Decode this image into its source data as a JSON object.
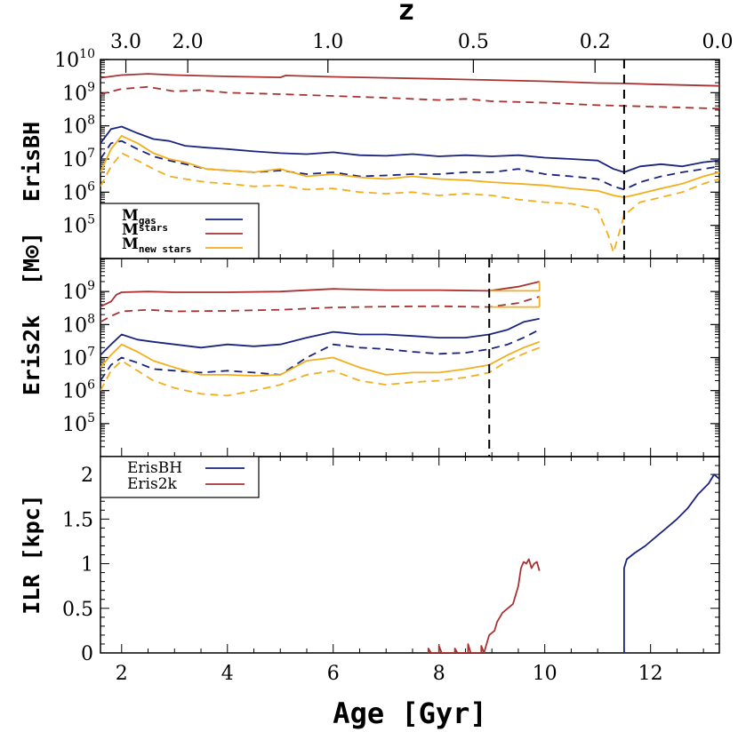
{
  "colors": {
    "gas": "#1a237e",
    "stars": "#a83232",
    "new_stars": "#f2ae1c",
    "axis": "#000000"
  },
  "chart_data": [
    {
      "type": "line",
      "panel": "top",
      "ylabel": "ErisBH",
      "yscale": "log",
      "ylim": [
        10000,
        10000000000
      ],
      "xlim": [
        1.6,
        13.3
      ],
      "top_axis_label": "z",
      "top_ticks": [
        {
          "label": "3.0",
          "age": 2.08
        },
        {
          "label": "2.0",
          "age": 3.25
        },
        {
          "label": "1.0",
          "age": 5.9
        },
        {
          "label": "0.5",
          "age": 8.65
        },
        {
          "label": "0.2",
          "age": 10.95
        },
        {
          "label": "0.0",
          "age": 13.3
        }
      ],
      "y_ticks": [
        "10^5",
        "10^6",
        "10^7",
        "10^8",
        "10^9",
        "10^10"
      ],
      "vline": 11.5,
      "legend": {
        "position": "lower-left",
        "entries": [
          {
            "base": "M",
            "sub": "gas",
            "sup": "",
            "series": "gas"
          },
          {
            "base": "M",
            "sub": "",
            "sup": "stars",
            "series": "stars"
          },
          {
            "base": "M",
            "sub": "new stars",
            "sup": "",
            "series": "new_stars"
          }
        ]
      },
      "series": [
        {
          "key": "stars",
          "style": "solid",
          "x": [
            1.6,
            2.0,
            2.5,
            3.0,
            4.0,
            5.0,
            5.1,
            6.0,
            7.0,
            8.0,
            9.0,
            10.0,
            11.0,
            11.5,
            12.0,
            13.3
          ],
          "y": [
            2800000000.0,
            3400000000.0,
            3700000000.0,
            3400000000.0,
            3100000000.0,
            2900000000.0,
            3300000000.0,
            3000000000.0,
            2800000000.0,
            2600000000.0,
            2400000000.0,
            2200000000.0,
            1950000000.0,
            1900000000.0,
            1800000000.0,
            1600000000.0
          ]
        },
        {
          "key": "stars",
          "style": "dashed",
          "x": [
            1.6,
            2.0,
            2.5,
            3.0,
            3.5,
            4.0,
            5.0,
            6.0,
            7.0,
            8.0,
            8.5,
            9.0,
            10.0,
            11.0,
            11.5,
            12.0,
            13.3
          ],
          "y": [
            900000000.0,
            1300000000.0,
            1500000000.0,
            1100000000.0,
            1200000000.0,
            1000000000.0,
            900000000.0,
            800000000.0,
            700000000.0,
            600000000.0,
            650000000.0,
            550000000.0,
            500000000.0,
            420000000.0,
            400000000.0,
            380000000.0,
            330000000.0
          ]
        },
        {
          "key": "gas",
          "style": "solid",
          "x": [
            1.6,
            1.8,
            2.0,
            2.3,
            2.6,
            2.9,
            3.2,
            3.6,
            4.0,
            4.5,
            5.0,
            5.5,
            6.0,
            6.5,
            7.0,
            7.5,
            8.0,
            8.5,
            9.0,
            9.5,
            10.0,
            10.5,
            11.0,
            11.3,
            11.5,
            11.8,
            12.2,
            12.6,
            13.0,
            13.3
          ],
          "y": [
            30000000.0,
            80000000.0,
            95000000.0,
            60000000.0,
            40000000.0,
            35000000.0,
            25000000.0,
            22000000.0,
            20000000.0,
            17000000.0,
            15000000.0,
            14000000.0,
            16000000.0,
            13000000.0,
            12500000.0,
            14000000.0,
            12000000.0,
            13000000.0,
            12000000.0,
            13000000.0,
            11000000.0,
            10000000.0,
            9000000.0,
            5000000.0,
            4000000.0,
            6000000.0,
            7000000.0,
            6000000.0,
            8000000.0,
            9000000.0
          ]
        },
        {
          "key": "gas",
          "style": "dashed",
          "x": [
            1.6,
            1.8,
            2.0,
            2.3,
            2.6,
            2.9,
            3.2,
            3.6,
            4.0,
            4.5,
            5.0,
            5.5,
            6.0,
            6.5,
            7.0,
            7.5,
            8.0,
            8.5,
            9.0,
            9.5,
            10.0,
            10.5,
            11.0,
            11.3,
            11.5,
            11.8,
            12.2,
            12.6,
            13.0,
            13.3
          ],
          "y": [
            10000000.0,
            30000000.0,
            35000000.0,
            20000000.0,
            12000000.0,
            9000000.0,
            7000000.0,
            5000000.0,
            4500000.0,
            4000000.0,
            4500000.0,
            3500000.0,
            4000000.0,
            3000000.0,
            3200000.0,
            3500000.0,
            3500000.0,
            4000000.0,
            4000000.0,
            5000000.0,
            3500000.0,
            3000000.0,
            2500000.0,
            1500000.0,
            1200000.0,
            2000000.0,
            3000000.0,
            4000000.0,
            5000000.0,
            6000000.0
          ]
        },
        {
          "key": "new_stars",
          "style": "solid",
          "x": [
            1.6,
            1.8,
            2.0,
            2.3,
            2.6,
            2.9,
            3.2,
            3.6,
            4.0,
            4.5,
            5.0,
            5.5,
            6.0,
            6.5,
            7.0,
            7.5,
            8.0,
            8.5,
            9.0,
            9.5,
            10.0,
            10.5,
            11.0,
            11.3,
            11.5,
            11.8,
            12.2,
            12.6,
            13.0,
            13.3
          ],
          "y": [
            4000000.0,
            20000000.0,
            50000000.0,
            30000000.0,
            15000000.0,
            10000000.0,
            8000000.0,
            5000000.0,
            4500000.0,
            4000000.0,
            5000000.0,
            3000000.0,
            3500000.0,
            2800000.0,
            2500000.0,
            3000000.0,
            2500000.0,
            2300000.0,
            2000000.0,
            1800000.0,
            1600000.0,
            1300000.0,
            1100000.0,
            800000.0,
            700000.0,
            900000.0,
            1300000.0,
            1800000.0,
            3000000.0,
            4000000.0
          ]
        },
        {
          "key": "new_stars",
          "style": "dashed",
          "x": [
            1.6,
            1.8,
            2.0,
            2.3,
            2.6,
            2.9,
            3.2,
            3.6,
            4.0,
            4.5,
            5.0,
            5.5,
            6.0,
            6.5,
            7.0,
            7.5,
            8.0,
            8.5,
            9.0,
            9.5,
            10.0,
            10.5,
            11.0,
            11.2,
            11.3,
            11.5,
            11.8,
            12.2,
            12.6,
            13.0,
            13.3
          ],
          "y": [
            1500000.0,
            6000000.0,
            15000000.0,
            9000000.0,
            5000000.0,
            3000000.0,
            2500000.0,
            2000000.0,
            1800000.0,
            1500000.0,
            1600000.0,
            1200000.0,
            1300000.0,
            1000000.0,
            900000.0,
            1000000.0,
            800000.0,
            900000.0,
            800000.0,
            600000.0,
            500000.0,
            450000.0,
            300000.0,
            50000.0,
            15000.0,
            200000.0,
            500000.0,
            700000.0,
            1000000.0,
            1800000.0,
            2500000.0
          ]
        }
      ]
    },
    {
      "type": "line",
      "panel": "middle",
      "ylabel": "Eris2k",
      "yscale": "log",
      "ylim": [
        10000,
        10000000000
      ],
      "xlim": [
        1.6,
        13.3
      ],
      "y_ticks": [
        "10^5",
        "10^6",
        "10^7",
        "10^8",
        "10^9"
      ],
      "vline": 8.95,
      "series": [
        {
          "key": "stars",
          "style": "solid",
          "x": [
            1.6,
            1.8,
            1.9,
            2.0,
            2.5,
            3.0,
            4.0,
            5.0,
            6.0,
            7.0,
            8.0,
            8.95,
            9.5,
            9.9
          ],
          "y": [
            350000000.0,
            500000000.0,
            800000000.0,
            950000000.0,
            1000000000.0,
            950000000.0,
            950000000.0,
            1000000000.0,
            1200000000.0,
            1100000000.0,
            1100000000.0,
            1050000000.0,
            1400000000.0,
            2000000000.0
          ]
        },
        {
          "key": "stars",
          "style": "dashed",
          "x": [
            1.6,
            1.8,
            2.0,
            2.5,
            3.0,
            4.0,
            5.0,
            6.0,
            7.0,
            8.0,
            8.95,
            9.5,
            9.9
          ],
          "y": [
            120000000.0,
            180000000.0,
            250000000.0,
            280000000.0,
            250000000.0,
            260000000.0,
            280000000.0,
            330000000.0,
            350000000.0,
            360000000.0,
            340000000.0,
            450000000.0,
            700000000.0
          ]
        },
        {
          "key": "gas",
          "style": "solid",
          "x": [
            1.6,
            1.8,
            2.0,
            2.3,
            2.6,
            3.0,
            3.5,
            4.0,
            4.5,
            5.0,
            5.5,
            6.0,
            6.5,
            7.0,
            7.5,
            8.0,
            8.5,
            8.95,
            9.3,
            9.6,
            9.9
          ],
          "y": [
            12000000.0,
            25000000.0,
            50000000.0,
            35000000.0,
            30000000.0,
            25000000.0,
            20000000.0,
            25000000.0,
            22000000.0,
            25000000.0,
            40000000.0,
            60000000.0,
            50000000.0,
            50000000.0,
            45000000.0,
            40000000.0,
            40000000.0,
            50000000.0,
            70000000.0,
            120000000.0,
            150000000.0
          ]
        },
        {
          "key": "gas",
          "style": "dashed",
          "x": [
            1.6,
            1.8,
            2.0,
            2.3,
            2.6,
            3.0,
            3.5,
            4.0,
            4.5,
            5.0,
            5.5,
            6.0,
            6.5,
            7.0,
            7.5,
            8.0,
            8.5,
            8.95,
            9.3,
            9.6,
            9.9
          ],
          "y": [
            2000000.0,
            6000000.0,
            10000000.0,
            7000000.0,
            4500000.0,
            4000000.0,
            3500000.0,
            4000000.0,
            3500000.0,
            3000000.0,
            10000000.0,
            25000000.0,
            20000000.0,
            18000000.0,
            15000000.0,
            13000000.0,
            14000000.0,
            18000000.0,
            25000000.0,
            40000000.0,
            70000000.0
          ]
        },
        {
          "key": "new_stars",
          "style": "solid",
          "x": [
            1.6,
            1.8,
            2.0,
            2.3,
            2.6,
            3.0,
            3.5,
            4.0,
            4.5,
            5.0,
            5.5,
            6.0,
            6.5,
            7.0,
            7.5,
            8.0,
            8.5,
            8.95,
            9.3,
            9.6,
            9.9
          ],
          "y": [
            5000000.0,
            12000000.0,
            25000000.0,
            15000000.0,
            8000000.0,
            5000000.0,
            3000000.0,
            3000000.0,
            2800000.0,
            3000000.0,
            8000000.0,
            10000000.0,
            5000000.0,
            3000000.0,
            3500000.0,
            3500000.0,
            4500000.0,
            6000000.0,
            12000000.0,
            20000000.0,
            30000000.0
          ]
        },
        {
          "key": "new_stars",
          "style": "dashed",
          "x": [
            1.6,
            1.8,
            2.0,
            2.3,
            2.6,
            3.0,
            3.5,
            4.0,
            4.5,
            5.0,
            5.5,
            6.0,
            6.5,
            7.0,
            7.5,
            8.0,
            8.5,
            8.95,
            9.3,
            9.6,
            9.9
          ],
          "y": [
            1000000.0,
            4000000.0,
            8000000.0,
            4000000.0,
            2000000.0,
            1200000.0,
            800000.0,
            700000.0,
            1000000.0,
            1500000.0,
            3000000.0,
            4000000.0,
            2000000.0,
            1500000.0,
            1800000.0,
            2000000.0,
            2500000.0,
            3500000.0,
            8000000.0,
            13000000.0,
            20000000.0
          ]
        },
        {
          "key": "new_stars",
          "style": "solid",
          "x": [
            8.95,
            9.9
          ],
          "y": [
            1050000000.0,
            1050000000.0
          ]
        },
        {
          "key": "new_stars",
          "style": "solid",
          "x": [
            8.95,
            9.9
          ],
          "y": [
            340000000.0,
            340000000.0
          ]
        },
        {
          "key": "new_stars",
          "style": "solid",
          "x": [
            9.9,
            9.9
          ],
          "y": [
            1050000000.0,
            2000000000.0
          ]
        },
        {
          "key": "new_stars",
          "style": "solid",
          "x": [
            9.9,
            9.9
          ],
          "y": [
            340000000.0,
            700000000.0
          ]
        }
      ]
    },
    {
      "type": "line",
      "panel": "bottom",
      "ylabel": "ILR [kpc]",
      "xlabel": "Age [Gyr]",
      "ylim": [
        0,
        2.2
      ],
      "xlim": [
        1.6,
        13.3
      ],
      "x_ticks": [
        "2",
        "4",
        "6",
        "8",
        "10",
        "12"
      ],
      "y_ticks": [
        "0",
        "0.5",
        "1",
        "1.5",
        "2"
      ],
      "legend": {
        "position": "top-left",
        "entries": [
          {
            "label": "ErisBH",
            "series": "gas"
          },
          {
            "label": "Eris2k",
            "series": "stars"
          }
        ]
      },
      "series": [
        {
          "name": "Eris2k",
          "key": "stars",
          "style": "solid",
          "x": [
            7.8,
            7.8,
            7.85,
            8.0,
            8.0,
            8.05,
            8.3,
            8.3,
            8.35,
            8.55,
            8.55,
            8.6,
            8.8,
            8.8,
            8.85,
            8.95,
            9.05,
            9.1,
            9.2,
            9.3,
            9.4,
            9.5,
            9.55,
            9.6,
            9.65,
            9.7,
            9.75,
            9.8,
            9.85,
            9.9
          ],
          "y": [
            0,
            0.05,
            0,
            0,
            0.08,
            0,
            0,
            0.05,
            0,
            0,
            0.1,
            0,
            0,
            0.08,
            0,
            0.2,
            0.25,
            0.35,
            0.45,
            0.5,
            0.55,
            0.75,
            0.95,
            1.02,
            1.0,
            1.05,
            0.95,
            1.0,
            1.02,
            0.92
          ]
        },
        {
          "name": "ErisBH",
          "key": "gas",
          "style": "solid",
          "x": [
            11.5,
            11.5,
            11.55,
            11.7,
            11.9,
            12.1,
            12.3,
            12.5,
            12.7,
            12.9,
            13.1,
            13.2,
            13.3
          ],
          "y": [
            0,
            0.95,
            1.05,
            1.12,
            1.2,
            1.3,
            1.4,
            1.5,
            1.62,
            1.78,
            1.9,
            2.0,
            1.95
          ]
        }
      ]
    }
  ]
}
